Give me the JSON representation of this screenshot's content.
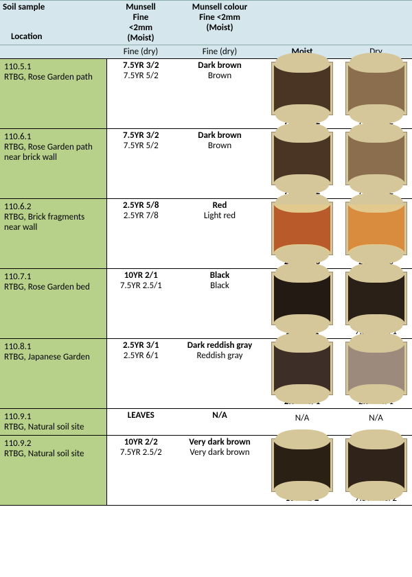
{
  "header": {
    "col1_line1": "Soil sample",
    "col1_loc": "Location",
    "col2_lines": [
      "Munsell",
      "Fine",
      "<2mm",
      "(Moist)"
    ],
    "col3_lines": [
      "Munsell colour",
      "Fine <2mm",
      "(Moist)"
    ],
    "sub": {
      "c1": "",
      "c2": "Fine (dry)",
      "c3": "Fine (dry)",
      "c4": "Moist",
      "c5": "Dry"
    }
  },
  "colors": {
    "header_bg": "#d5e7ed",
    "loc_bg": "#b8d18a",
    "swatch_frame": "#d6c79a",
    "swatch_border": "#9a8a6a"
  },
  "widths": {
    "c1": 155,
    "c2": 100,
    "c3": 130,
    "c4": 110,
    "c5": 105
  },
  "rows": [
    {
      "loc_id": "110.5.1",
      "loc_desc": "RTBG, Rose Garden path",
      "code_moist": "7.5YR 3/2",
      "code_dry": "7.5YR 5/2",
      "name_moist": "Dark brown",
      "name_dry": "Brown",
      "swatch_moist": {
        "label": "7.5YR 3/2",
        "fill": "#4a3424",
        "cap": "#d6c79a"
      },
      "swatch_dry": {
        "label": "7.5YR 5/2",
        "fill": "#8a6e4e",
        "cap": "#d6c79a"
      }
    },
    {
      "loc_id": "110.6.1",
      "loc_desc": "RTBG, Rose Garden path near brick wall",
      "code_moist": "7.5YR 3/2",
      "code_dry": "7.5YR 5/2",
      "name_moist": "Dark brown",
      "name_dry": "Brown",
      "swatch_moist": {
        "label": "7.5YR 3/2",
        "fill": "#4a3424",
        "cap": "#d6c79a"
      },
      "swatch_dry": {
        "label": "7.5YR 5/2",
        "fill": "#8a6e4e",
        "cap": "#d6c79a"
      }
    },
    {
      "loc_id": "110.6.2",
      "loc_desc": "RTBG, Brick fragments near wall",
      "code_moist": "2.5YR 5/8",
      "code_dry": "2.5YR 7/8",
      "name_moist": "Red",
      "name_dry": "Light red",
      "swatch_moist": {
        "label": "2.5YR 5/8",
        "fill": "#b85a2a",
        "cap": "#e2c98e"
      },
      "swatch_dry": {
        "label": "2.5YR 7/8",
        "fill": "#d98b3e",
        "cap": "#e2c98e"
      }
    },
    {
      "loc_id": "110.7.1",
      "loc_desc": "RTBG, Rose Garden bed",
      "code_moist": "10YR 2/1",
      "code_dry": "7.5YR 2.5/1",
      "name_moist": "Black",
      "name_dry": "Black",
      "swatch_moist": {
        "label": "10YR 2/1",
        "fill": "#231a14",
        "cap": "#d6c79a"
      },
      "swatch_dry": {
        "label": "7.5YR 2.5/1",
        "fill": "#2a2018",
        "cap": "#d6c79a"
      }
    },
    {
      "loc_id": "110.8.1",
      "loc_desc": "RTBG, Japanese Garden",
      "code_moist": "2.5YR 3/1",
      "code_dry": "2.5YR 6/1",
      "name_moist": "Dark reddish gray",
      "name_dry": "Reddish gray",
      "swatch_moist": {
        "label": "2.5YR 3/1",
        "fill": "#3e2e28",
        "cap": "#d6c79a"
      },
      "swatch_dry": {
        "label": "2.5YR 6/1",
        "fill": "#9c8a7c",
        "cap": "#d6c79a"
      }
    },
    {
      "loc_id": "110.9.1",
      "loc_desc": "RTBG, Natural soil site",
      "code_moist": "LEAVES",
      "code_dry": "",
      "name_moist": "N/A",
      "name_dry": "",
      "na_moist": "N/A",
      "na_dry": "N/A",
      "no_swatch": true
    },
    {
      "loc_id": "110.9.2",
      "loc_desc": "RTBG, Natural soil site",
      "code_moist": "10YR 2/2",
      "code_dry": "7.5YR 2.5/2",
      "name_moist": "Very dark brown",
      "name_dry": "Very dark brown",
      "swatch_moist": {
        "label": "10YR 2/2",
        "fill": "#2a2014",
        "cap": "#d6c79a"
      },
      "swatch_dry": {
        "label": "7.5YR 2.5/2",
        "fill": "#30241a",
        "cap": "#d6c79a"
      }
    }
  ]
}
